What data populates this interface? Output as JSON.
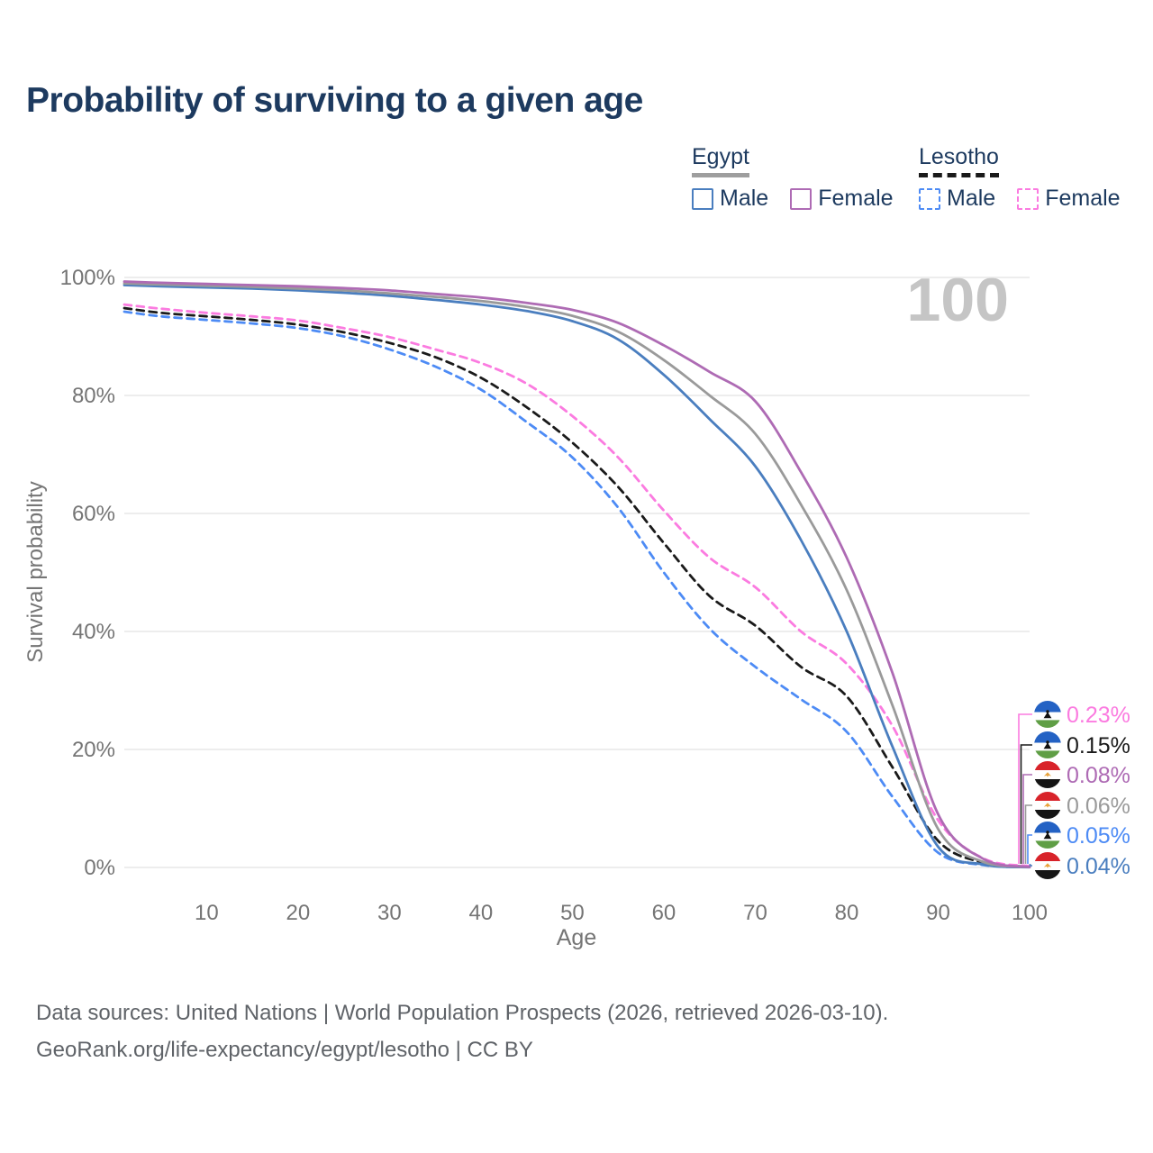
{
  "title": "Probability of surviving to a given age",
  "watermark": "100",
  "legend": {
    "groups": [
      {
        "country": "Egypt",
        "line_style": "solid",
        "underline_color": "#9e9e9e",
        "items": [
          {
            "label": "Male",
            "color": "#4a7ebf"
          },
          {
            "label": "Female",
            "color": "#ae6bb4"
          }
        ]
      },
      {
        "country": "Lesotho",
        "line_style": "dashed",
        "underline_color": "#1a1a1a",
        "items": [
          {
            "label": "Male",
            "color": "#4d8bf5"
          },
          {
            "label": "Female",
            "color": "#fb7be0"
          }
        ]
      }
    ]
  },
  "chart_data": {
    "type": "line",
    "title": "Probability of surviving to a given age",
    "xlabel": "Age",
    "ylabel": "Survival probability",
    "xlim": [
      1,
      100
    ],
    "ylim": [
      0,
      100
    ],
    "grid": "horizontal",
    "x_ticks": [
      10,
      20,
      30,
      40,
      50,
      60,
      70,
      80,
      90,
      100
    ],
    "y_ticks": [
      "0%",
      "20%",
      "40%",
      "60%",
      "80%",
      "100%"
    ],
    "x": [
      1,
      5,
      10,
      15,
      20,
      25,
      30,
      35,
      40,
      45,
      50,
      55,
      60,
      65,
      70,
      75,
      80,
      85,
      90,
      95,
      100
    ],
    "series": [
      {
        "name": "Lesotho Male",
        "country": "Lesotho",
        "sex": "Male",
        "color": "#4d8bf5",
        "dash": "dashed",
        "end_label": "0.05%",
        "values": [
          94.2,
          93.4,
          92.8,
          92.2,
          91.4,
          90.0,
          87.8,
          84.9,
          81.0,
          75.5,
          69.5,
          61.0,
          50.0,
          40.5,
          34.0,
          28.5,
          23.0,
          12.0,
          2.5,
          0.4,
          0.05
        ]
      },
      {
        "name": "Lesotho Both sexes",
        "country": "Lesotho",
        "sex": "Both",
        "color": "#1a1a1a",
        "dash": "dashed",
        "end_label": "0.15%",
        "values": [
          94.8,
          94.0,
          93.4,
          92.8,
          92.0,
          90.7,
          88.9,
          86.5,
          83.0,
          78.0,
          72.0,
          64.5,
          55.0,
          46.0,
          41.0,
          34.0,
          29.0,
          17.0,
          4.5,
          0.8,
          0.15
        ]
      },
      {
        "name": "Lesotho Female",
        "country": "Lesotho",
        "sex": "Female",
        "color": "#fb7be0",
        "dash": "dashed",
        "end_label": "0.23%",
        "values": [
          95.4,
          94.7,
          94.0,
          93.4,
          92.7,
          91.4,
          89.9,
          87.8,
          85.5,
          82.0,
          76.5,
          69.5,
          60.5,
          52.5,
          47.5,
          40.0,
          34.5,
          24.0,
          8.0,
          1.5,
          0.23
        ]
      },
      {
        "name": "Egypt Male",
        "country": "Egypt",
        "sex": "Male",
        "color": "#4a7ebf",
        "dash": "solid",
        "end_label": "0.04%",
        "values": [
          98.7,
          98.5,
          98.3,
          98.1,
          97.8,
          97.4,
          96.9,
          96.2,
          95.4,
          94.3,
          92.6,
          89.5,
          83.5,
          76.0,
          68.0,
          55.5,
          40.0,
          20.5,
          3.5,
          0.5,
          0.04
        ]
      },
      {
        "name": "Egypt Both sexes",
        "country": "Egypt",
        "sex": "Both",
        "color": "#9a9a9a",
        "dash": "solid",
        "end_label": "0.06%",
        "values": [
          99.0,
          98.8,
          98.6,
          98.4,
          98.1,
          97.8,
          97.3,
          96.7,
          96.0,
          95.0,
          93.5,
          90.8,
          86.0,
          80.0,
          73.5,
          61.5,
          47.0,
          27.5,
          6.5,
          0.9,
          0.06
        ]
      },
      {
        "name": "Egypt Female",
        "country": "Egypt",
        "sex": "Female",
        "color": "#ae6bb4",
        "dash": "solid",
        "end_label": "0.08%",
        "values": [
          99.3,
          99.1,
          98.9,
          98.7,
          98.5,
          98.2,
          97.8,
          97.2,
          96.6,
          95.7,
          94.5,
          92.3,
          88.5,
          84.0,
          79.0,
          67.0,
          52.5,
          33.0,
          9.0,
          1.4,
          0.08
        ]
      }
    ],
    "legend_position": "top-right"
  },
  "right_labels": [
    {
      "value": "0.23%",
      "color": "#fb7be0",
      "flag": "lesotho"
    },
    {
      "value": "0.15%",
      "color": "#1a1a1a",
      "flag": "lesotho"
    },
    {
      "value": "0.08%",
      "color": "#ae6bb4",
      "flag": "egypt"
    },
    {
      "value": "0.06%",
      "color": "#9a9a9a",
      "flag": "egypt"
    },
    {
      "value": "0.05%",
      "color": "#4d8bf5",
      "flag": "lesotho"
    },
    {
      "value": "0.04%",
      "color": "#4a7ebf",
      "flag": "egypt"
    }
  ],
  "footer": {
    "line1": "Data sources: United Nations | World Population Prospects (2026, retrieved 2026-03-10).",
    "line2": "GeoRank.org/life-expectancy/egypt/lesotho | CC BY"
  }
}
